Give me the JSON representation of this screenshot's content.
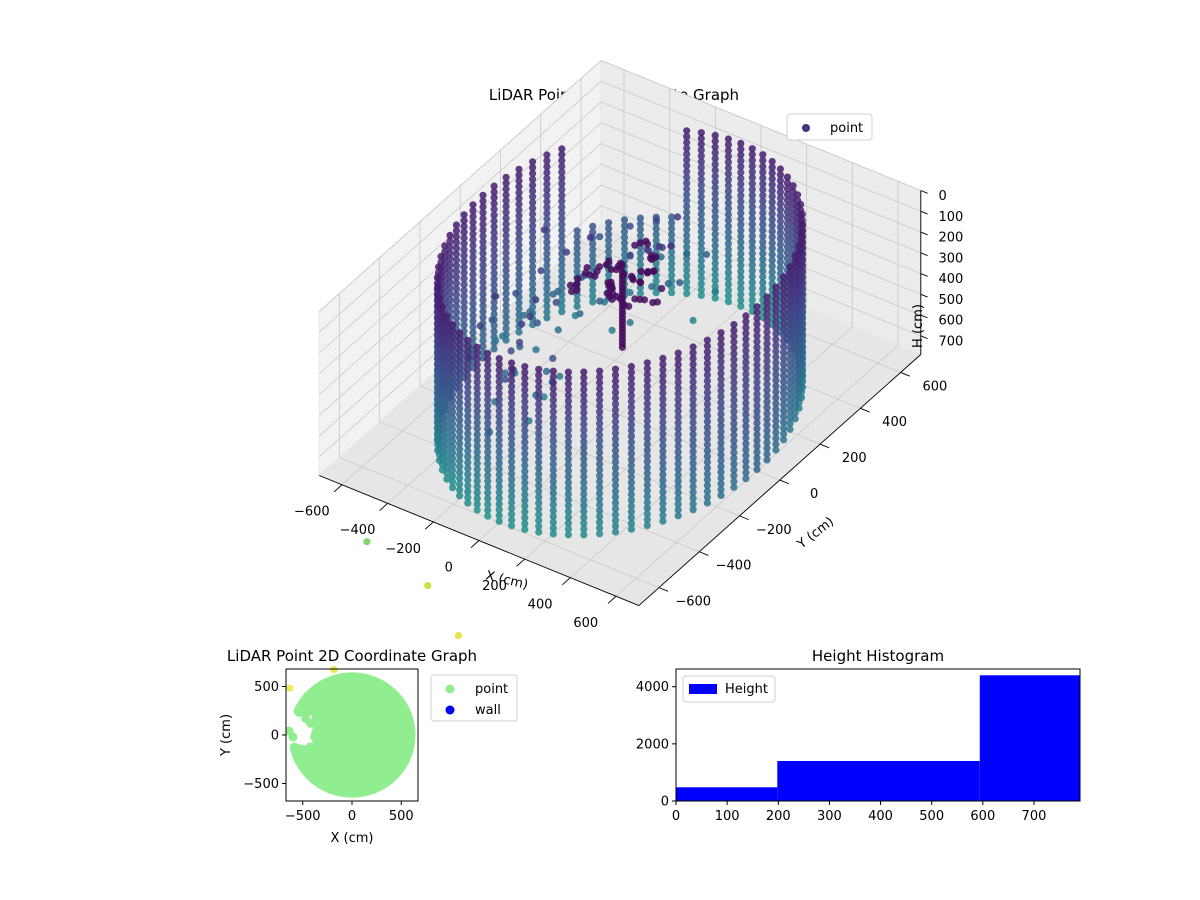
{
  "chart_data": [
    {
      "type": "scatter",
      "projection": "3d",
      "title": "LiDAR Point 3D Coordinate Graph",
      "xlabel": "X (cm)",
      "ylabel": "Y (cm)",
      "zlabel": "H (cm)",
      "xticks": [
        -600,
        -400,
        -200,
        0,
        200,
        400,
        600
      ],
      "yticks": [
        -600,
        -400,
        -200,
        0,
        200,
        400,
        600
      ],
      "zticks": [
        0,
        100,
        200,
        300,
        400,
        500,
        600,
        700
      ],
      "z_inverted": true,
      "colormap": "viridis",
      "legend": {
        "placement": "top-right",
        "entries": [
          {
            "name": "point",
            "color": "#46337e"
          }
        ]
      },
      "series": [
        {
          "name": "point",
          "description_shape": "cylindrical wall of radius ~600 cm, heights 0-790 cm, plus a tree-like cluster near center",
          "wall": {
            "radius": 600,
            "h_min": 0,
            "h_max": 790,
            "gap_start_deg": 110,
            "gap_end_deg": 150
          },
          "tree": {
            "x": -60,
            "y": 80,
            "h_top": 200,
            "h_bottom": 560
          },
          "outliers": [
            {
              "x": -200,
              "y": -1030,
              "h": 600,
              "color": "#6ccd5a"
            },
            {
              "x": 40,
              "y": -1000,
              "h": 730,
              "color": "#bddf26"
            },
            {
              "x": 280,
              "y": -1120,
              "h": 760,
              "color": "#e0e12a"
            },
            {
              "x": 0,
              "y": -1420,
              "h": 790,
              "color": "#e8e42b"
            },
            {
              "x": 500,
              "y": -1400,
              "h": 790,
              "color": "#eae62e"
            },
            {
              "x": -70,
              "y": -1560,
              "h": 790,
              "color": "#ece73a"
            }
          ]
        }
      ]
    },
    {
      "type": "scatter",
      "title": "LiDAR Point 2D Coordinate Graph",
      "xlabel": "X (cm)",
      "ylabel": "Y (cm)",
      "xlim": [
        -670,
        670
      ],
      "ylim": [
        -680,
        680
      ],
      "xticks": [
        -500,
        0,
        500
      ],
      "yticks": [
        -500,
        0,
        500
      ],
      "legend": {
        "placement": "outside-right",
        "entries": [
          {
            "name": "point",
            "color": "#90ee90"
          },
          {
            "name": "wall",
            "color": "#0000ff"
          }
        ]
      },
      "series": [
        {
          "name": "point",
          "color": "#90ee90",
          "shape": "filled disc radius ~600 cm with notch on left side"
        },
        {
          "name": "wall",
          "color": "#0000ff",
          "values": []
        }
      ]
    },
    {
      "type": "bar",
      "title": "Height Histogram",
      "xlim": [
        0,
        790
      ],
      "ylim": [
        0,
        4620
      ],
      "xticks": [
        0,
        100,
        200,
        300,
        400,
        500,
        600,
        700
      ],
      "yticks": [
        0,
        2000,
        4000
      ],
      "legend": {
        "placement": "top-left",
        "entries": [
          {
            "name": "Height",
            "color": "#0000ff"
          }
        ]
      },
      "bins": [
        {
          "start": 0,
          "end": 198,
          "count": 480
        },
        {
          "start": 198,
          "end": 594,
          "count": 1400
        },
        {
          "start": 594,
          "end": 790,
          "count": 4400
        }
      ],
      "color": "#0000ff"
    }
  ]
}
